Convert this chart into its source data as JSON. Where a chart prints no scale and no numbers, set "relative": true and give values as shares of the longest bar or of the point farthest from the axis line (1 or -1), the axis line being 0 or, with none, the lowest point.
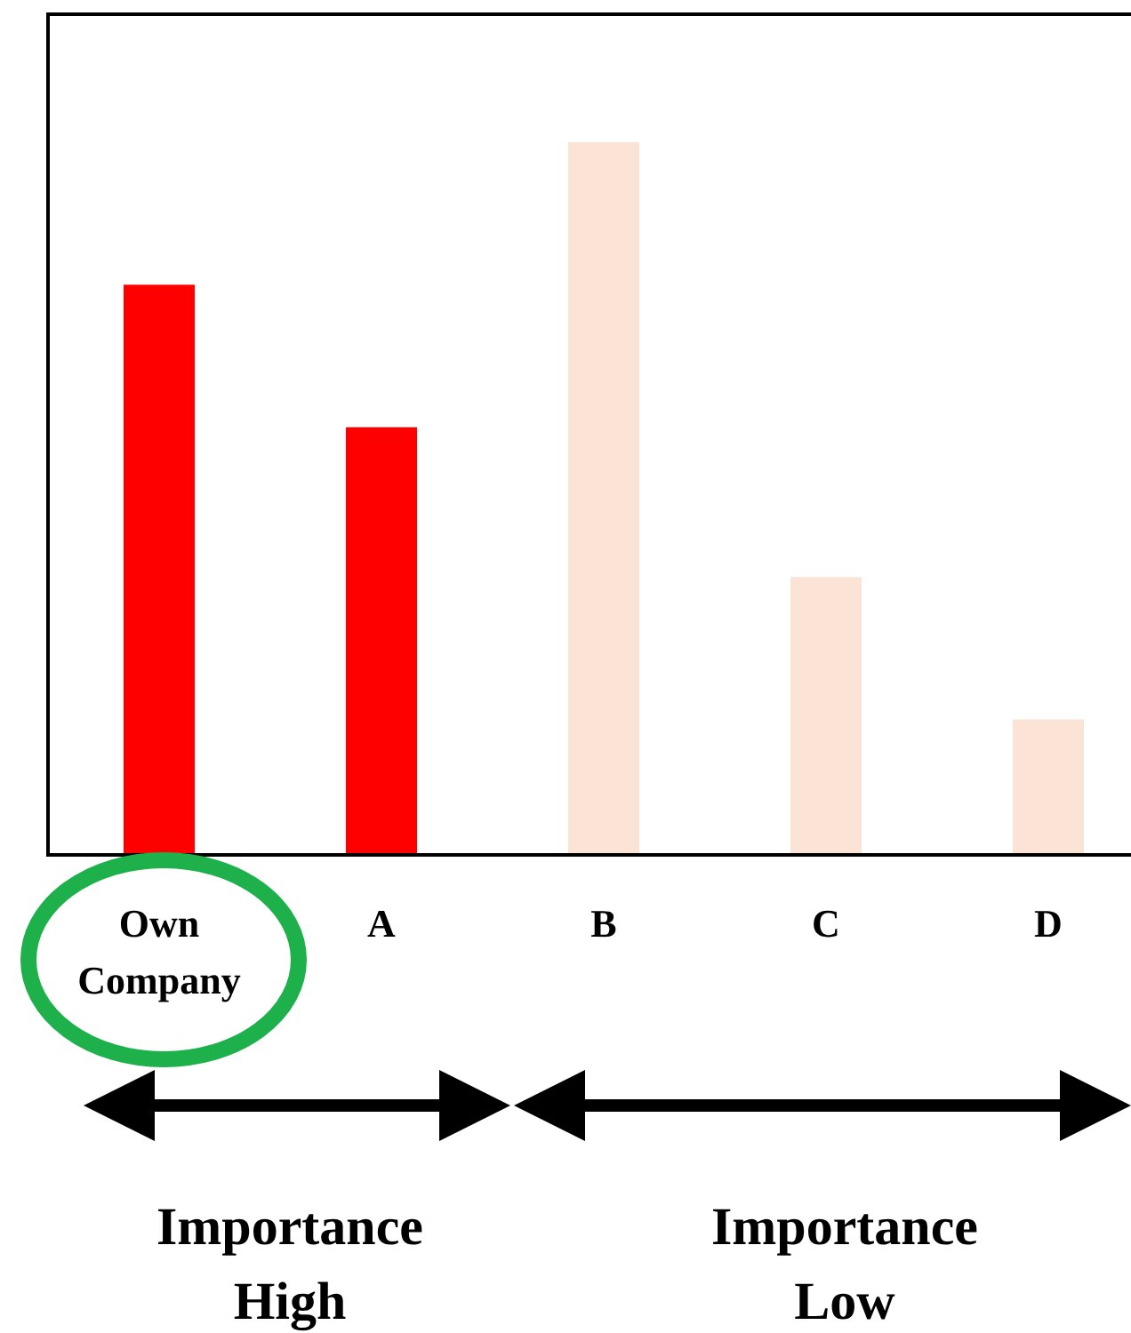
{
  "chart_data": {
    "type": "bar",
    "relative": true,
    "categories": [
      "Own Company",
      "A",
      "B",
      "C",
      "D"
    ],
    "values": [
      0.8,
      0.6,
      1,
      0.39,
      0.19
    ],
    "colors": [
      "#ff0000",
      "#ff0000",
      "#fbe3d6",
      "#fbe3d6",
      "#fbe3d6"
    ],
    "annotations": [
      "Importance High",
      "Importance Low"
    ]
  }
}
